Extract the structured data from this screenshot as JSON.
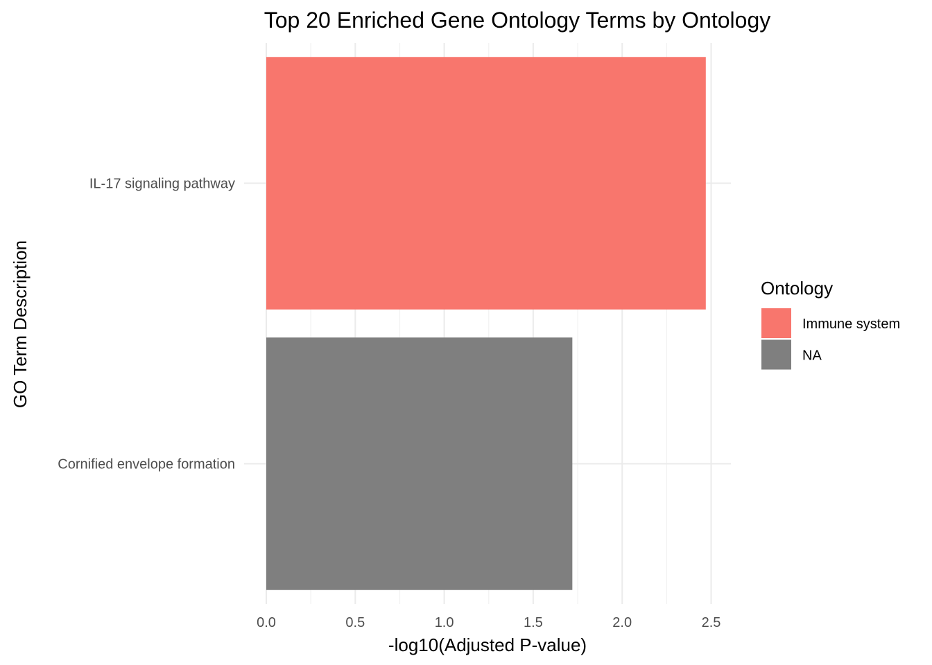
{
  "chart_data": {
    "type": "bar",
    "orientation": "horizontal",
    "title": "Top 20 Enriched Gene Ontology Terms by Ontology",
    "xlabel": "-log10(Adjusted P-value)",
    "ylabel": "GO Term Description",
    "xlim": [
      0,
      2.6
    ],
    "xticks": [
      0.0,
      0.5,
      1.0,
      1.5,
      2.0,
      2.5
    ],
    "xtick_labels": [
      "0.0",
      "0.5",
      "1.0",
      "1.5",
      "2.0",
      "2.5"
    ],
    "categories": [
      "IL-17 signaling pathway",
      "Cornified envelope formation"
    ],
    "values": [
      2.47,
      1.72
    ],
    "groups": [
      "Immune system",
      "NA"
    ],
    "grid": true,
    "legend": {
      "title": "Ontology",
      "placement": "right",
      "entries": [
        {
          "label": "Immune system",
          "color": "#F8766D"
        },
        {
          "label": "NA",
          "color": "#7F7F7F"
        }
      ]
    }
  }
}
